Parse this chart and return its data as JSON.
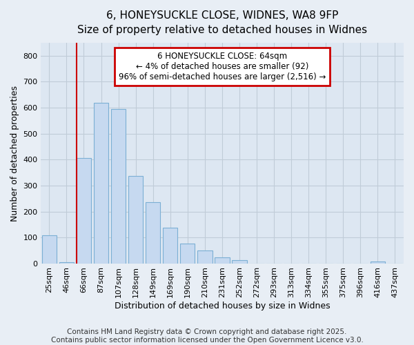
{
  "title_line1": "6, HONEYSUCKLE CLOSE, WIDNES, WA8 9FP",
  "title_line2": "Size of property relative to detached houses in Widnes",
  "xlabel": "Distribution of detached houses by size in Widnes",
  "ylabel": "Number of detached properties",
  "categories": [
    "25sqm",
    "46sqm",
    "66sqm",
    "87sqm",
    "107sqm",
    "128sqm",
    "149sqm",
    "169sqm",
    "190sqm",
    "210sqm",
    "231sqm",
    "252sqm",
    "272sqm",
    "293sqm",
    "313sqm",
    "334sqm",
    "355sqm",
    "375sqm",
    "396sqm",
    "416sqm",
    "437sqm"
  ],
  "values": [
    110,
    5,
    407,
    620,
    595,
    338,
    236,
    138,
    78,
    50,
    25,
    15,
    0,
    0,
    0,
    0,
    0,
    0,
    0,
    8,
    0
  ],
  "bar_color": "#c6d9f0",
  "bar_edge_color": "#7bafd4",
  "annotation_text_line1": "6 HONEYSUCKLE CLOSE: 64sqm",
  "annotation_text_line2": "← 4% of detached houses are smaller (92)",
  "annotation_text_line3": "96% of semi-detached houses are larger (2,516) →",
  "annotation_box_color": "#ffffff",
  "annotation_border_color": "#cc0000",
  "vline_color": "#cc0000",
  "vline_x_index": 2,
  "ylim": [
    0,
    850
  ],
  "yticks": [
    0,
    100,
    200,
    300,
    400,
    500,
    600,
    700,
    800
  ],
  "background_color": "#e8eef5",
  "plot_background_color": "#dde7f2",
  "grid_color": "#c0ccd8",
  "footer_line1": "Contains HM Land Registry data © Crown copyright and database right 2025.",
  "footer_line2": "Contains public sector information licensed under the Open Government Licence v3.0.",
  "title_fontsize": 11,
  "subtitle_fontsize": 10,
  "axis_label_fontsize": 9,
  "tick_fontsize": 8,
  "annotation_fontsize": 8.5,
  "footer_fontsize": 7.5
}
